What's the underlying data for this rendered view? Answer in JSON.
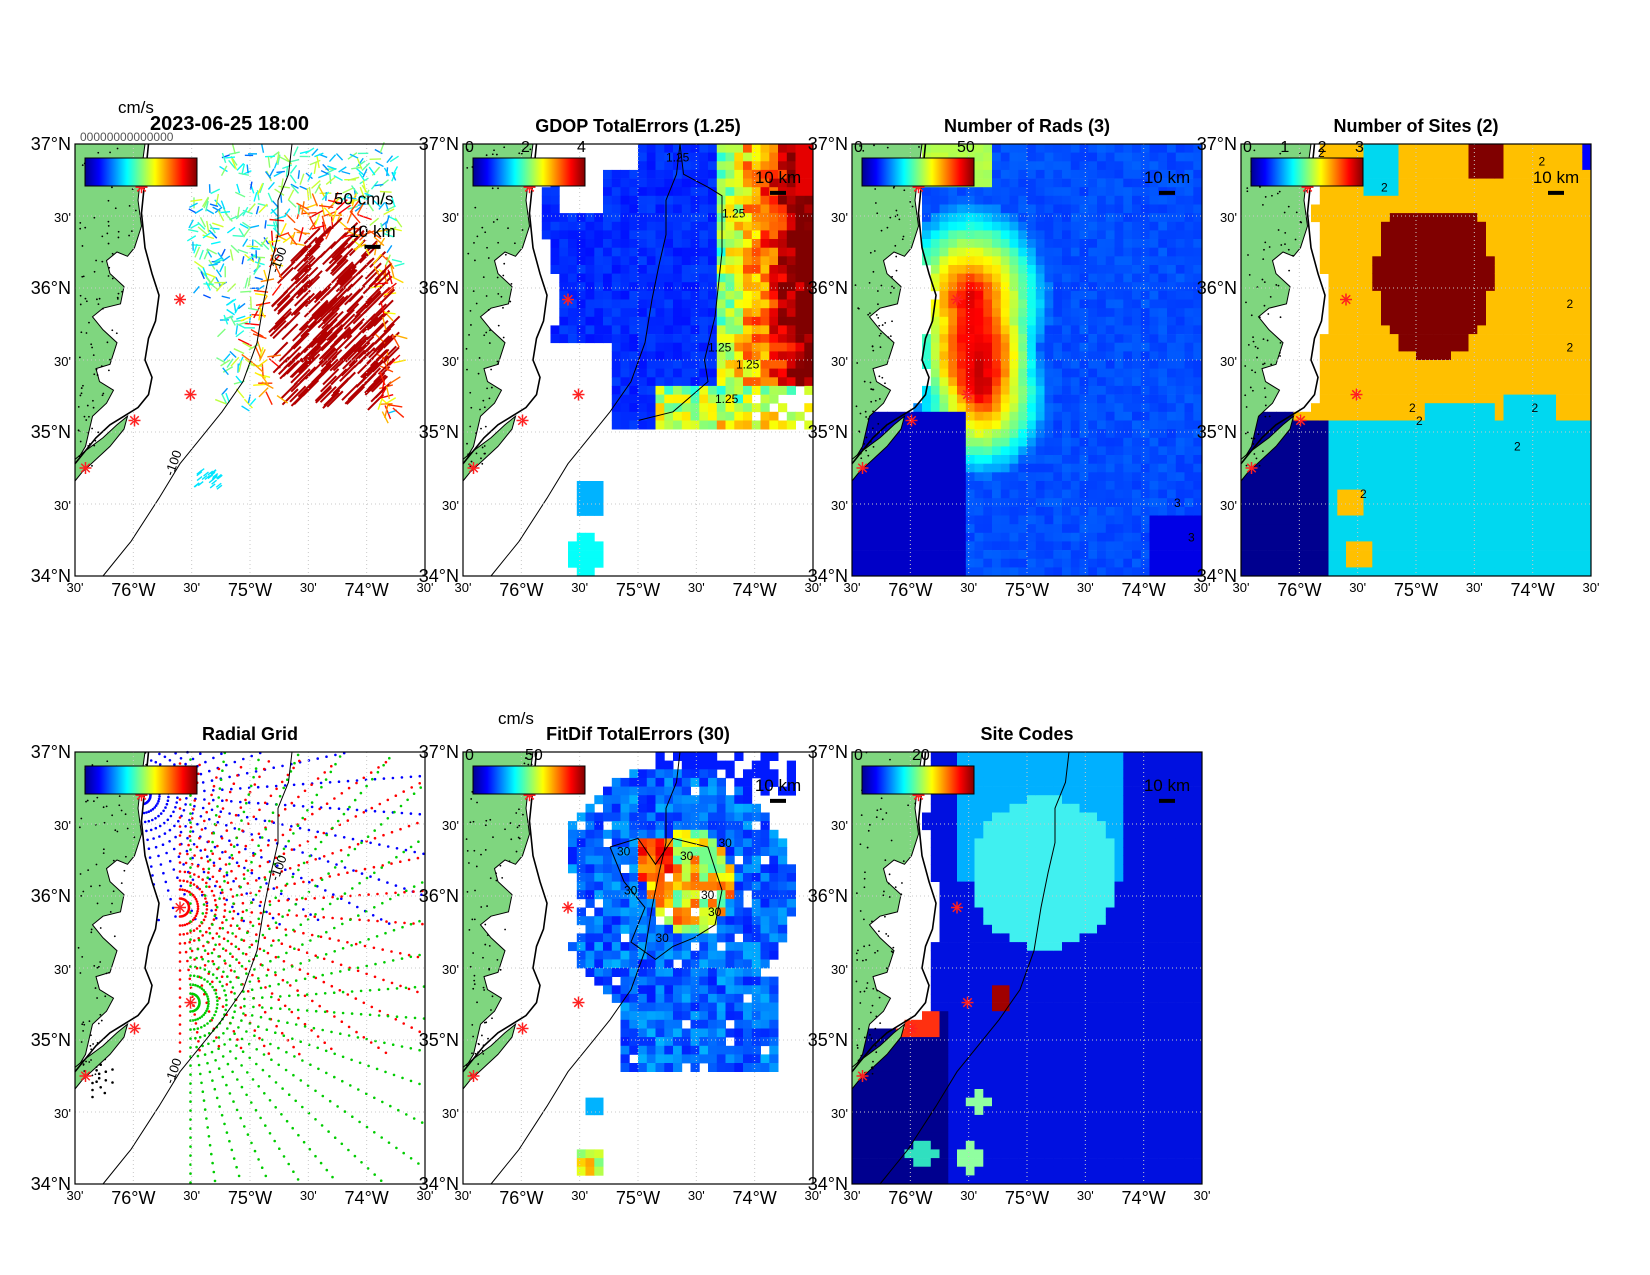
{
  "page": {
    "timestamp": "2023-06-25 18:00",
    "vector_unit_top": "cm/s",
    "vector_unit_bottom": "cm/s",
    "vector_scale_label": "50 cm/s",
    "scale_bar_label": "10 km",
    "overlapped_legend_text": "00000000000000"
  },
  "axes": {
    "lat_labels": [
      "37°N",
      "30'",
      "36°N",
      "30'",
      "35°N",
      "30'",
      "34°N"
    ],
    "lon_labels": [
      "30'",
      "76°W",
      "30'",
      "75°W",
      "30'",
      "74°W",
      "30'"
    ]
  },
  "panels": [
    {
      "id": "totals",
      "title": "",
      "colorbar_ticks": [],
      "contour_labels": [
        "-100",
        "-100"
      ]
    },
    {
      "id": "gdop",
      "title": "GDOP TotalErrors (1.25)",
      "colorbar_ticks": [
        "0",
        "2",
        "4"
      ],
      "contour_labels": [
        "1.25",
        "1.25",
        "1.25",
        "1.25",
        "1.25"
      ]
    },
    {
      "id": "nrads",
      "title": "Number of Rads (3)",
      "colorbar_ticks": [
        "0",
        "50"
      ],
      "contour_labels": [
        "3",
        "3"
      ]
    },
    {
      "id": "nsites",
      "title": "Number of Sites (2)",
      "colorbar_ticks": [
        "0",
        "1",
        "2",
        "3"
      ],
      "contour_labels": [
        "2",
        "2",
        "2",
        "2",
        "2",
        "2",
        "2",
        "2",
        "2",
        "2"
      ]
    },
    {
      "id": "radgrid",
      "title": "Radial Grid",
      "colorbar_ticks": [],
      "contour_labels": [
        "-100",
        "-100"
      ]
    },
    {
      "id": "fitdif",
      "title": "FitDif TotalErrors (30)",
      "colorbar_ticks": [
        "0",
        "50"
      ],
      "contour_labels": [
        "30",
        "30",
        "30",
        "30",
        "30",
        "30",
        "30"
      ]
    },
    {
      "id": "sitecodes",
      "title": "Site Codes",
      "colorbar_ticks": [
        "0",
        "20"
      ],
      "contour_labels": []
    }
  ],
  "colors": {
    "land": "#7fd67f",
    "site_marker": "#ff2020",
    "grid_sites": [
      "#0000ff",
      "#ff0000",
      "#00cc00",
      "#000000"
    ]
  }
}
